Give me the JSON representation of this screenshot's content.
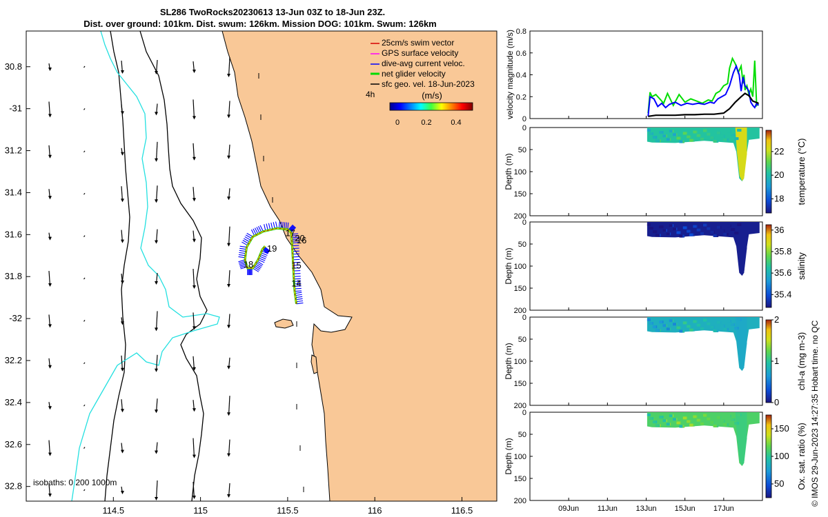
{
  "title": {
    "line1": "SL286 TwoRocks20230613 13-Jun 03Z to 18-Jun 23Z.",
    "line2": "Dist. over ground: 101km. Dist. swum: 126km. Mission DOG: 101km. Swum: 126km"
  },
  "watermark": "© IMOS 29-Jun-2023 14:27:35 Hobart time. no QC",
  "chart_data": [
    {
      "type": "map",
      "xlim": [
        114.0,
        116.7
      ],
      "ylim": [
        -32.87,
        -30.63
      ],
      "x_ticks": [
        114.5,
        115,
        115.5,
        116,
        116.5
      ],
      "x_tick_labels": [
        "114.5",
        "115",
        "115.5",
        "116",
        "116.5"
      ],
      "y_ticks": [
        -30.8,
        -31,
        -31.2,
        -31.4,
        -31.6,
        -31.8,
        -32,
        -32.2,
        -32.4,
        -32.6,
        -32.8
      ],
      "y_tick_labels": [
        "30.8",
        "-31",
        "31.2",
        "31.4",
        "31.6",
        "31.8",
        "-32",
        "32.2",
        "32.4",
        "32.6",
        "32.8"
      ],
      "legend": [
        {
          "label": "25cm/s swim vector",
          "color": "#d40000"
        },
        {
          "label": "GPS surface velocity",
          "color": "#ff00ff"
        },
        {
          "label": "dive-avg current veloc.",
          "color": "#0000ff"
        },
        {
          "label": "net glider velocity",
          "color": "#00dd00"
        },
        {
          "label": "sfc geo. vel. 18-Jun-2023",
          "color": "#000000"
        }
      ],
      "colorbar": {
        "label": "(m/s)",
        "ticks": [
          "0",
          "0.2",
          "0.4"
        ],
        "range": [
          0,
          0.5
        ]
      },
      "time_label": "4h",
      "isobaths_label": "isobaths: 0   200  1000m",
      "track": [
        [
          115.55,
          -31.93
        ],
        [
          115.54,
          -31.87
        ],
        [
          115.535,
          -31.8
        ],
        [
          115.53,
          -31.72
        ],
        [
          115.525,
          -31.64
        ],
        [
          115.52,
          -31.59
        ],
        [
          115.5,
          -31.575
        ],
        [
          115.44,
          -31.57
        ],
        [
          115.36,
          -31.585
        ],
        [
          115.3,
          -31.61
        ],
        [
          115.265,
          -31.66
        ],
        [
          115.255,
          -31.72
        ],
        [
          115.27,
          -31.76
        ],
        [
          115.3,
          -31.76
        ],
        [
          115.33,
          -31.72
        ],
        [
          115.355,
          -31.67
        ],
        [
          115.37,
          -31.655
        ]
      ],
      "day_labels": [
        {
          "text": "14",
          "lon": 115.55,
          "lat": -31.83
        },
        {
          "text": "15",
          "lon": 115.55,
          "lat": -31.745
        },
        {
          "text": "16",
          "lon": 115.58,
          "lat": -31.625
        },
        {
          "text": "17",
          "lon": 115.515,
          "lat": -31.59
        },
        {
          "text": "20",
          "lon": 115.57,
          "lat": -31.615
        },
        {
          "text": "18",
          "lon": 115.275,
          "lat": -31.74
        },
        {
          "text": "19",
          "lon": 115.41,
          "lat": -31.665
        }
      ]
    },
    {
      "type": "line",
      "ylabel": "velocity magnitude (m/s)",
      "ylim": [
        0,
        0.8
      ],
      "y_ticks": [
        0,
        0.2,
        0.4,
        0.6,
        0.8
      ],
      "y_tick_labels": [
        "0",
        "0.2",
        "0.4",
        "0.6",
        "0.8"
      ],
      "xlim": [
        7.0,
        19.0
      ],
      "x_ticks": [
        9,
        11,
        13,
        15,
        17
      ],
      "x_tick_labels": [
        "09Jun",
        "11Jun",
        "13Jun",
        "15Jun",
        "17Jun"
      ],
      "series": [
        {
          "name": "net glider velocity",
          "color": "#00dd00",
          "x": [
            13.1,
            13.2,
            13.3,
            13.5,
            13.7,
            13.9,
            14.1,
            14.4,
            14.7,
            15.0,
            15.3,
            15.6,
            15.9,
            16.2,
            16.4,
            16.6,
            16.8,
            17.0,
            17.2,
            17.3,
            17.45,
            17.6,
            17.75,
            17.9,
            18.0,
            18.05,
            18.1,
            18.2,
            18.3,
            18.4,
            18.5,
            18.6,
            18.7,
            18.8
          ],
          "y": [
            0.05,
            0.24,
            0.2,
            0.22,
            0.18,
            0.14,
            0.23,
            0.12,
            0.22,
            0.15,
            0.18,
            0.16,
            0.14,
            0.17,
            0.16,
            0.23,
            0.25,
            0.3,
            0.32,
            0.46,
            0.55,
            0.5,
            0.42,
            0.48,
            0.32,
            0.4,
            0.26,
            0.3,
            0.22,
            0.27,
            0.2,
            0.53,
            0.12,
            0.14
          ]
        },
        {
          "name": "dive-avg current veloc.",
          "color": "#0000ff",
          "x": [
            13.1,
            13.2,
            13.4,
            13.6,
            13.8,
            14.0,
            14.2,
            14.5,
            14.8,
            15.1,
            15.4,
            15.7,
            16.0,
            16.3,
            16.5,
            16.7,
            16.9,
            17.1,
            17.3,
            17.5,
            17.65,
            17.8,
            17.9,
            18.0,
            18.1,
            18.2,
            18.3,
            18.4,
            18.5,
            18.6,
            18.7,
            18.8
          ],
          "y": [
            0.02,
            0.2,
            0.18,
            0.11,
            0.14,
            0.1,
            0.13,
            0.15,
            0.12,
            0.14,
            0.13,
            0.14,
            0.13,
            0.15,
            0.14,
            0.18,
            0.2,
            0.22,
            0.3,
            0.42,
            0.48,
            0.4,
            0.25,
            0.38,
            0.3,
            0.28,
            0.25,
            0.15,
            0.12,
            0.1,
            0.14,
            0.12
          ]
        },
        {
          "name": "sfc geo. vel. 18-Jun-2023",
          "color": "#000000",
          "x": [
            13.1,
            13.5,
            14.0,
            14.5,
            15.0,
            15.5,
            16.0,
            16.5,
            17.0,
            17.3,
            17.6,
            17.9,
            18.1,
            18.3,
            18.5,
            18.8
          ],
          "y": [
            0.02,
            0.03,
            0.03,
            0.03,
            0.035,
            0.035,
            0.04,
            0.04,
            0.05,
            0.09,
            0.15,
            0.2,
            0.23,
            0.21,
            0.16,
            0.14
          ]
        }
      ]
    },
    {
      "type": "heatmap",
      "ylabel": "Depth (m)",
      "ylim": [
        0,
        200
      ],
      "y_ticks": [
        0,
        50,
        100,
        150,
        200
      ],
      "y_tick_labels": [
        "0",
        "50",
        "100",
        "150",
        "200"
      ],
      "colorbar_label": "temperature (°C)",
      "colorbar_ticks": [
        "18",
        "20",
        "22"
      ],
      "colorbar_range": [
        16.8,
        23.8
      ],
      "dominant_value": 20.2,
      "anomaly_value": 22.3
    },
    {
      "type": "heatmap",
      "ylabel": "Depth (m)",
      "ylim": [
        0,
        200
      ],
      "y_ticks": [
        0,
        50,
        100,
        150,
        200
      ],
      "y_tick_labels": [
        "0",
        "50",
        "100",
        "150",
        "200"
      ],
      "colorbar_label": "salinity",
      "colorbar_ticks": [
        "35.4",
        "35.6",
        "35.8",
        "36"
      ],
      "colorbar_range": [
        35.28,
        36.05
      ],
      "dominant_value": 35.3,
      "anomaly_value": 35.3
    },
    {
      "type": "heatmap",
      "ylabel": "Depth (m)",
      "ylim": [
        0,
        200
      ],
      "y_ticks": [
        0,
        50,
        100,
        150,
        200
      ],
      "y_tick_labels": [
        "0",
        "50",
        "100",
        "150",
        "200"
      ],
      "colorbar_label": "chl-a (mg m-3)",
      "colorbar_ticks": [
        "0",
        "1",
        "2"
      ],
      "colorbar_range": [
        0,
        2
      ],
      "dominant_value": 0.8,
      "anomaly_value": 0.75
    },
    {
      "type": "heatmap",
      "ylabel": "Depth (m)",
      "ylim": [
        0,
        200
      ],
      "y_ticks": [
        0,
        50,
        100,
        150,
        200
      ],
      "y_tick_labels": [
        "0",
        "50",
        "100",
        "150",
        "200"
      ],
      "colorbar_label": "Ox. sat. ratio (%)",
      "colorbar_ticks": [
        "50",
        "100",
        "150"
      ],
      "colorbar_range": [
        25,
        175
      ],
      "dominant_value": 112,
      "anomaly_value": 106
    }
  ]
}
